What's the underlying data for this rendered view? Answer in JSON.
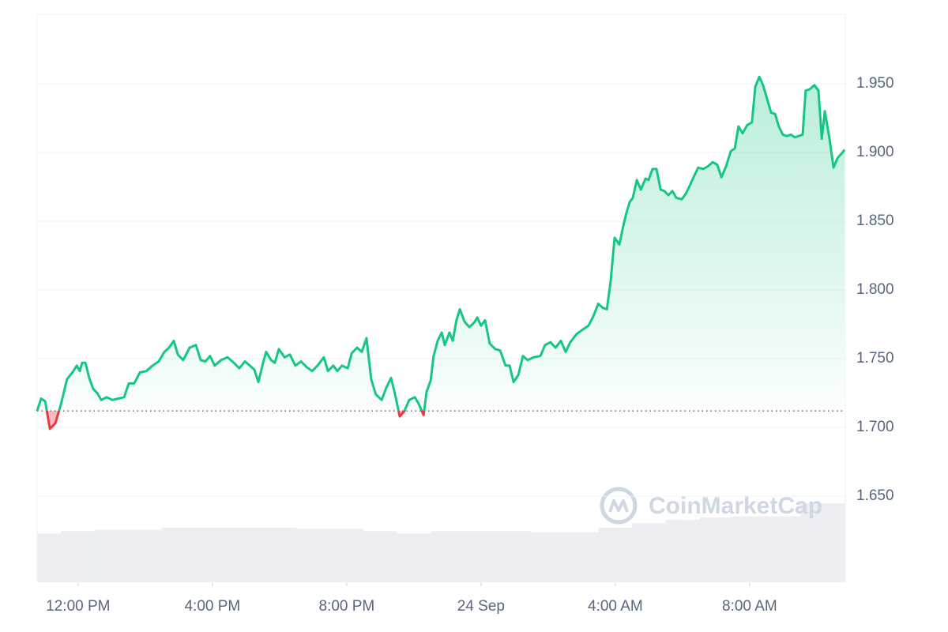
{
  "chart_data": {
    "type": "line",
    "x": [
      10.78,
      10.9,
      11.02,
      11.16,
      11.32,
      11.49,
      11.67,
      11.86,
      11.96,
      12.05,
      12.12,
      12.22,
      12.33,
      12.45,
      12.57,
      12.69,
      12.85,
      13.02,
      13.2,
      13.37,
      13.51,
      13.67,
      13.84,
      14.03,
      14.22,
      14.4,
      14.57,
      14.71,
      14.85,
      14.97,
      15.13,
      15.32,
      15.51,
      15.65,
      15.79,
      15.93,
      16.07,
      16.26,
      16.45,
      16.64,
      16.8,
      16.97,
      17.16,
      17.25,
      17.37,
      17.51,
      17.6,
      17.75,
      17.86,
      17.98,
      18.15,
      18.31,
      18.47,
      18.64,
      18.8,
      18.97,
      19.13,
      19.32,
      19.44,
      19.6,
      19.72,
      19.86,
      20.03,
      20.15,
      20.31,
      20.45,
      20.59,
      20.73,
      20.87,
      21.04,
      21.18,
      21.32,
      21.44,
      21.58,
      21.72,
      21.86,
      22.03,
      22.15,
      22.29,
      22.38,
      22.5,
      22.59,
      22.71,
      22.83,
      22.92,
      23.06,
      23.16,
      23.27,
      23.37,
      23.51,
      23.65,
      23.79,
      23.89,
      24.0,
      24.12,
      24.26,
      24.43,
      24.57,
      24.73,
      24.85,
      24.97,
      25.11,
      25.25,
      25.39,
      25.56,
      25.77,
      25.91,
      26.07,
      26.22,
      26.38,
      26.52,
      26.66,
      26.85,
      27.02,
      27.2,
      27.35,
      27.49,
      27.63,
      27.75,
      27.86,
      27.98,
      28.12,
      28.24,
      28.33,
      28.43,
      28.52,
      28.64,
      28.76,
      28.9,
      28.99,
      29.11,
      29.23,
      29.35,
      29.46,
      29.58,
      29.7,
      29.82,
      29.98,
      30.1,
      30.22,
      30.33,
      30.47,
      30.62,
      30.76,
      30.9,
      31.04,
      31.16,
      31.3,
      31.44,
      31.56,
      31.67,
      31.79,
      31.93,
      32.07,
      32.17,
      32.29,
      32.4,
      32.52,
      32.64,
      32.76,
      32.87,
      32.99,
      33.11,
      33.23,
      33.35,
      33.46,
      33.58,
      33.67,
      33.79,
      33.93,
      34.05,
      34.15,
      34.24,
      34.38,
      34.5,
      34.62,
      34.73,
      34.83
    ],
    "values": [
      1.712,
      1.721,
      1.719,
      1.699,
      1.703,
      1.717,
      1.735,
      1.741,
      1.745,
      1.741,
      1.747,
      1.747,
      1.736,
      1.728,
      1.725,
      1.72,
      1.722,
      1.72,
      1.721,
      1.722,
      1.732,
      1.732,
      1.74,
      1.741,
      1.745,
      1.748,
      1.755,
      1.758,
      1.763,
      1.753,
      1.749,
      1.758,
      1.76,
      1.749,
      1.748,
      1.752,
      1.745,
      1.749,
      1.751,
      1.747,
      1.743,
      1.748,
      1.744,
      1.742,
      1.733,
      1.747,
      1.755,
      1.749,
      1.747,
      1.757,
      1.751,
      1.753,
      1.745,
      1.748,
      1.744,
      1.741,
      1.745,
      1.751,
      1.741,
      1.745,
      1.741,
      1.745,
      1.743,
      1.754,
      1.758,
      1.755,
      1.765,
      1.735,
      1.724,
      1.72,
      1.729,
      1.736,
      1.724,
      1.708,
      1.712,
      1.72,
      1.722,
      1.717,
      1.709,
      1.726,
      1.734,
      1.752,
      1.763,
      1.769,
      1.76,
      1.769,
      1.763,
      1.778,
      1.786,
      1.777,
      1.773,
      1.776,
      1.78,
      1.774,
      1.778,
      1.761,
      1.757,
      1.756,
      1.745,
      1.745,
      1.733,
      1.738,
      1.752,
      1.749,
      1.751,
      1.752,
      1.76,
      1.762,
      1.758,
      1.763,
      1.755,
      1.762,
      1.768,
      1.771,
      1.774,
      1.781,
      1.79,
      1.787,
      1.786,
      1.806,
      1.838,
      1.833,
      1.847,
      1.856,
      1.864,
      1.867,
      1.88,
      1.873,
      1.881,
      1.88,
      1.888,
      1.888,
      1.873,
      1.872,
      1.869,
      1.872,
      1.867,
      1.866,
      1.87,
      1.876,
      1.882,
      1.889,
      1.888,
      1.89,
      1.893,
      1.891,
      1.882,
      1.89,
      1.901,
      1.903,
      1.919,
      1.914,
      1.92,
      1.922,
      1.948,
      1.955,
      1.949,
      1.939,
      1.929,
      1.928,
      1.919,
      1.913,
      1.912,
      1.913,
      1.911,
      1.912,
      1.913,
      1.945,
      1.946,
      1.949,
      1.945,
      1.91,
      1.93,
      1.91,
      1.889,
      1.896,
      1.899,
      1.902
    ],
    "baseline": 1.712,
    "colors": {
      "above": "#16c784",
      "below": "#ea3943",
      "volume": "#eceef2"
    },
    "volume": {
      "x": [
        10.78,
        11.5,
        12.5,
        14.5,
        18.5,
        20.5,
        21.5,
        22.5,
        25.5,
        27.5,
        28.5,
        29.5,
        30.5,
        31.5,
        33.5
      ],
      "values": [
        8.6,
        9.0,
        9.2,
        9.6,
        9.4,
        9.0,
        8.6,
        9.0,
        8.8,
        9.6,
        10.4,
        11.0,
        11.4,
        11.6,
        13.9
      ],
      "ylim": [
        0,
        100
      ]
    },
    "xlim": [
      10.78,
      34.85
    ],
    "ylim": [
      1.5874,
      2.0006
    ],
    "xticks": [
      {
        "value": 12,
        "label": "12:00 PM"
      },
      {
        "value": 16,
        "label": "4:00 PM"
      },
      {
        "value": 20,
        "label": "8:00 PM"
      },
      {
        "value": 24,
        "label": "24 Sep"
      },
      {
        "value": 28,
        "label": "4:00 AM"
      },
      {
        "value": 32,
        "label": "8:00 AM"
      }
    ],
    "yticks": [
      {
        "value": 1.65,
        "label": "1.650"
      },
      {
        "value": 1.7,
        "label": "1.700"
      },
      {
        "value": 1.75,
        "label": "1.750"
      },
      {
        "value": 1.8,
        "label": "1.800"
      },
      {
        "value": 1.85,
        "label": "1.850"
      },
      {
        "value": 1.9,
        "label": "1.900"
      },
      {
        "value": 1.95,
        "label": "1.950"
      }
    ],
    "grid": true,
    "watermark": "CoinMarketCap"
  }
}
